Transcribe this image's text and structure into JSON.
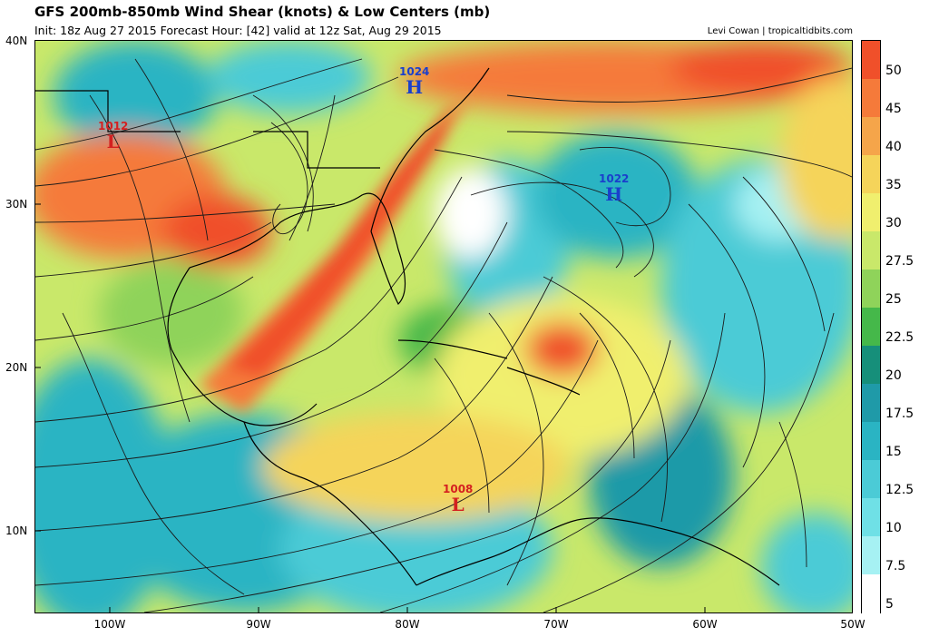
{
  "header": {
    "title": "GFS 200mb-850mb Wind Shear (knots) & Low Centers (mb)",
    "subtitle": "Init: 18z Aug 27 2015   Forecast Hour: [42]   valid at 12z Sat, Aug 29 2015",
    "credit": "Levi Cowan | tropicaltidbits.com"
  },
  "axes": {
    "lat_labels": [
      "40N",
      "30N",
      "20N",
      "10N"
    ],
    "lon_labels": [
      "100W",
      "90W",
      "80W",
      "70W",
      "60W",
      "50W"
    ]
  },
  "colorbar": {
    "labels": [
      "50",
      "45",
      "40",
      "35",
      "30",
      "27.5",
      "25",
      "22.5",
      "20",
      "17.5",
      "15",
      "12.5",
      "10",
      "7.5",
      "5"
    ],
    "colors": [
      "#f0502a",
      "#f57a3a",
      "#f5a54a",
      "#f5d45a",
      "#f0ef6e",
      "#c9e86a",
      "#8fd35a",
      "#45b84a",
      "#168f7a",
      "#1f9aa8",
      "#2ab4c3",
      "#4bcbd6",
      "#6fe0e6",
      "#a6f1f3",
      "#ffffff"
    ]
  },
  "centers": [
    {
      "type": "L",
      "pressure": "1012",
      "color": "#d42020"
    },
    {
      "type": "H",
      "pressure": "1024",
      "color": "#1a3fcc"
    },
    {
      "type": "H",
      "pressure": "1022",
      "color": "#1a3fcc"
    },
    {
      "type": "L",
      "pressure": "1008",
      "color": "#d42020"
    }
  ]
}
